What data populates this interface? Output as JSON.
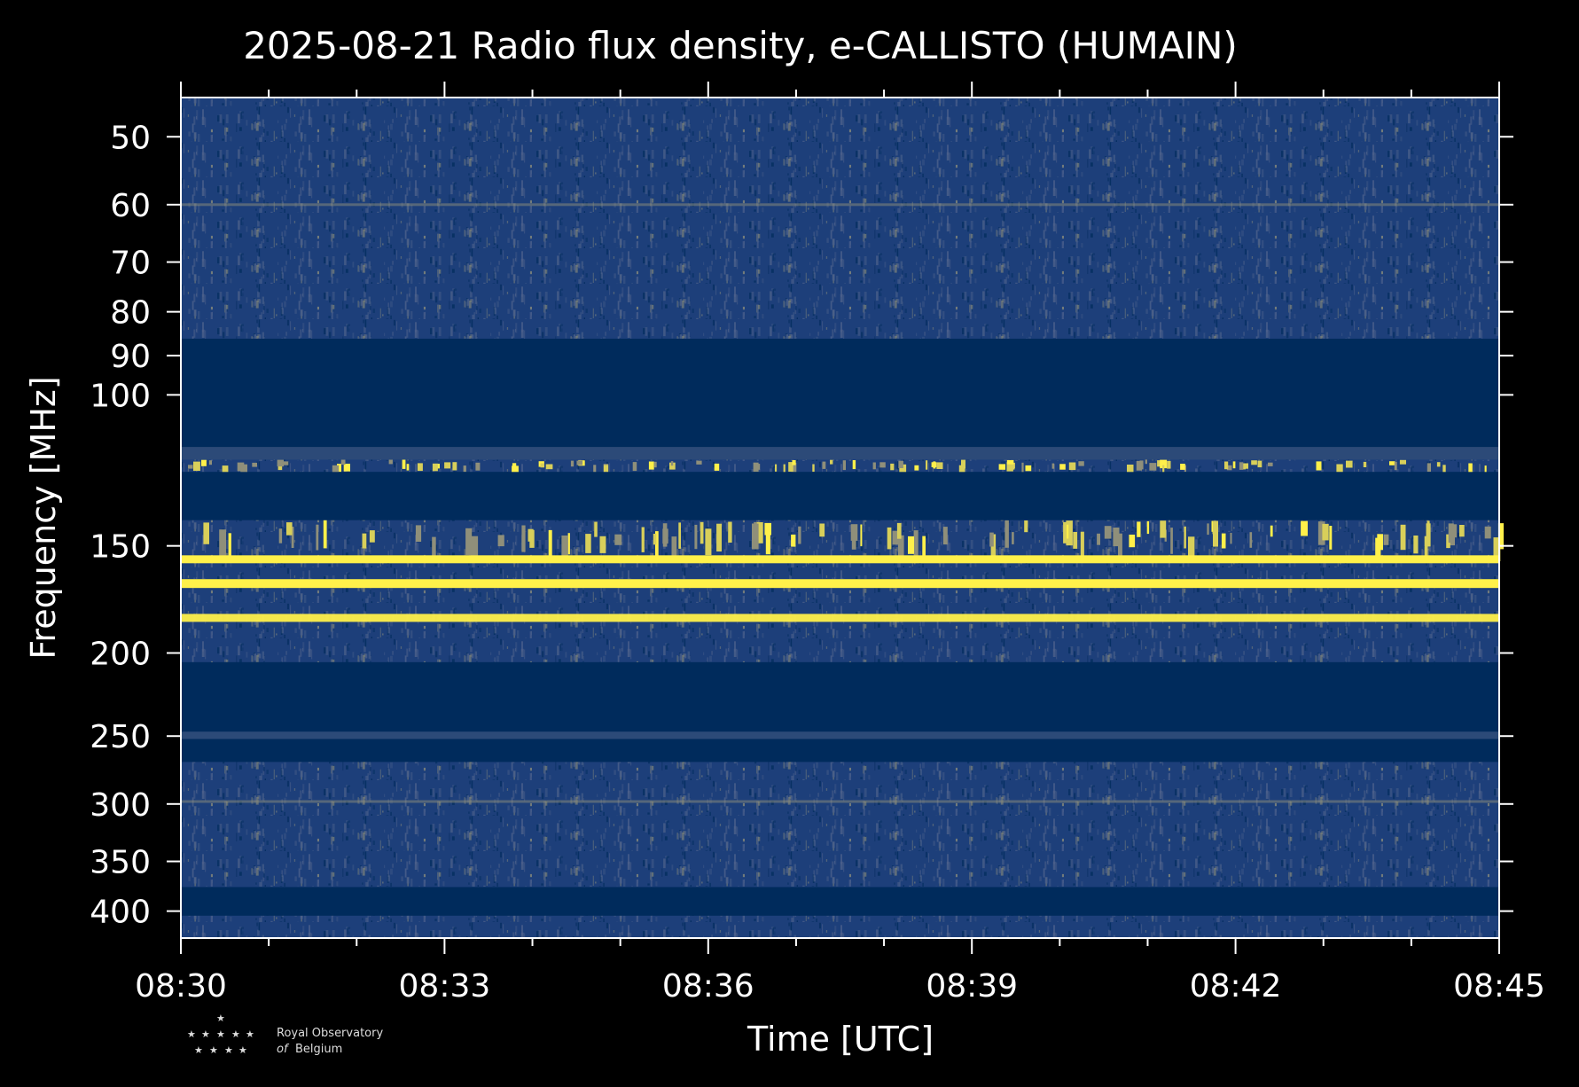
{
  "chart_data": {
    "type": "heatmap",
    "title": "2025-08-21 Radio flux density, e-CALLISTO (HUMAIN)",
    "xlabel": "Time [UTC]",
    "ylabel": "Frequency [MHz]",
    "x_ticks": [
      "08:30",
      "08:33",
      "08:36",
      "08:39",
      "08:42",
      "08:45"
    ],
    "x_range": [
      "08:30",
      "08:45"
    ],
    "y_scale": "log",
    "y_ticks": [
      50,
      60,
      70,
      80,
      90,
      100,
      150,
      200,
      250,
      300,
      350,
      400
    ],
    "y_range": [
      45,
      430
    ],
    "colormap": [
      "#002b5c",
      "#1d3f7a",
      "#4a5f8a",
      "#8f8f7a",
      "#d8cf5a",
      "#fff04a"
    ],
    "grid": false,
    "bands": [
      {
        "f_low": 45,
        "f_high": 86,
        "level": "noise"
      },
      {
        "f_low": 86,
        "f_high": 115,
        "level": "blank"
      },
      {
        "f_low": 115,
        "f_high": 119,
        "level": "faint"
      },
      {
        "f_low": 119,
        "f_high": 123,
        "level": "bursty"
      },
      {
        "f_low": 123,
        "f_high": 140,
        "level": "blank"
      },
      {
        "f_low": 140,
        "f_high": 154,
        "level": "bursty"
      },
      {
        "f_low": 154,
        "f_high": 157,
        "level": "bright"
      },
      {
        "f_low": 157,
        "f_high": 164,
        "level": "noise"
      },
      {
        "f_low": 164,
        "f_high": 168,
        "level": "bright"
      },
      {
        "f_low": 168,
        "f_high": 205,
        "level": "noise"
      },
      {
        "f_low": 205,
        "f_high": 247,
        "level": "blank"
      },
      {
        "f_low": 247,
        "f_high": 252,
        "level": "faint"
      },
      {
        "f_low": 252,
        "f_high": 268,
        "level": "blank"
      },
      {
        "f_low": 268,
        "f_high": 375,
        "level": "noise"
      },
      {
        "f_low": 375,
        "f_high": 405,
        "level": "blank"
      },
      {
        "f_low": 405,
        "f_high": 430,
        "level": "noise"
      }
    ],
    "lines": [
      {
        "freq": 60,
        "level": "faint"
      },
      {
        "freq": 155.5,
        "level": "bright"
      },
      {
        "freq": 166,
        "level": "bright"
      },
      {
        "freq": 182,
        "level": "bright"
      },
      {
        "freq": 298,
        "level": "faint"
      }
    ]
  },
  "logo": {
    "line1": "Royal Observatory",
    "line2_italic": "of",
    "line2": "Belgium",
    "stars": "★"
  }
}
